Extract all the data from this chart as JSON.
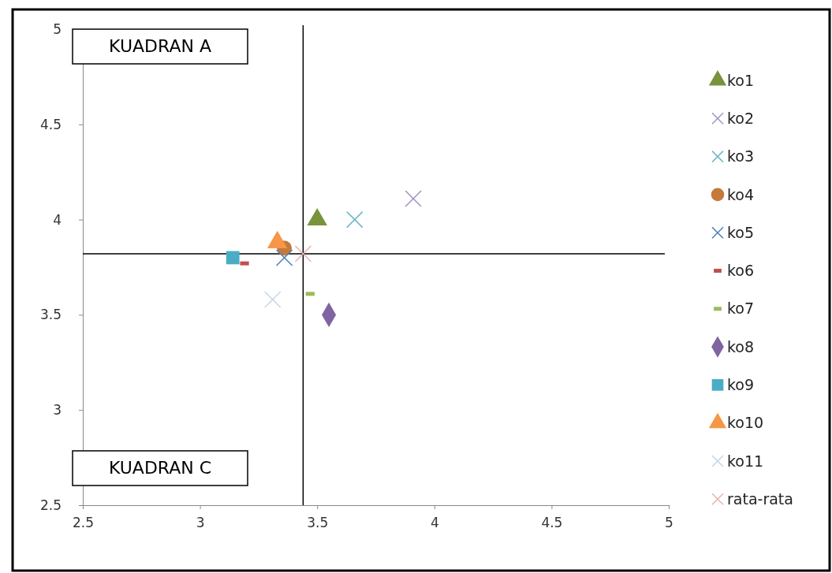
{
  "chart_data": {
    "type": "scatter",
    "xlim": [
      2.5,
      5
    ],
    "ylim": [
      2.5,
      5
    ],
    "xticks": [
      2.5,
      3,
      3.5,
      4,
      4.5,
      5
    ],
    "yticks": [
      2.5,
      3,
      3.5,
      4,
      4.5,
      5
    ],
    "grid": false,
    "legend": "right",
    "series": [
      {
        "name": "ko1",
        "color": "#77933c",
        "marker": "triangle",
        "x": [
          3.5
        ],
        "values": [
          4.0
        ]
      },
      {
        "name": "ko2",
        "color": "#a393c0",
        "marker": "cross",
        "x": [
          3.91
        ],
        "values": [
          4.11
        ]
      },
      {
        "name": "ko3",
        "color": "#6fb7c9",
        "marker": "cross",
        "x": [
          3.66
        ],
        "values": [
          4.0
        ]
      },
      {
        "name": "ko4",
        "color": "#c47a3a",
        "marker": "circle",
        "x": [
          3.36
        ],
        "values": [
          3.85
        ]
      },
      {
        "name": "ko5",
        "color": "#4a7ebb",
        "marker": "cross",
        "x": [
          3.36
        ],
        "values": [
          3.8
        ]
      },
      {
        "name": "ko6",
        "color": "#c0504d",
        "x": [
          3.19
        ],
        "values": [
          3.77
        ]
      },
      {
        "name": "ko7",
        "color": "#9bbb59",
        "x": [
          3.47
        ],
        "values": [
          3.61
        ]
      },
      {
        "name": "ko8",
        "color": "#8064a2",
        "marker": "diamond",
        "x": [
          3.55
        ],
        "values": [
          3.5
        ]
      },
      {
        "name": "ko9",
        "color": "#4bacc6",
        "marker": "square",
        "x": [
          3.14
        ],
        "values": [
          3.8
        ]
      },
      {
        "name": "ko10",
        "color": "#f79646",
        "marker": "triangle",
        "x": [
          3.33
        ],
        "values": [
          3.88
        ]
      },
      {
        "name": "ko11",
        "color": "#c6d3ea",
        "marker": "cross",
        "x": [
          3.31
        ],
        "values": [
          3.58
        ]
      },
      {
        "name": "rata-rata",
        "color": "#e6b2b0",
        "marker": "cross",
        "x": [
          3.44
        ],
        "values": [
          3.82
        ]
      }
    ],
    "ref_lines": [
      {
        "axis": "x",
        "value": 3.44,
        "color": "#000000"
      },
      {
        "axis": "y",
        "value": 3.82,
        "color": "#000000"
      }
    ],
    "annotations": [
      "KUADRAN A",
      "KUADRAN C"
    ]
  }
}
